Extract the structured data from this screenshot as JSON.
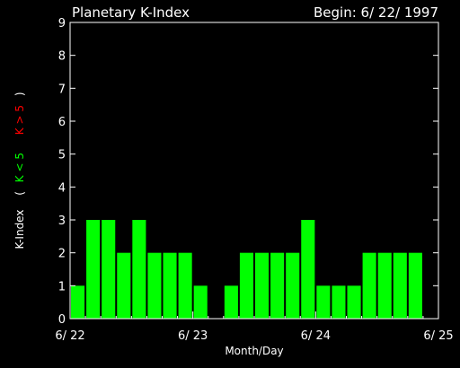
{
  "chart_data": {
    "type": "bar",
    "title": "Planetary K-Index",
    "subtitle": "Begin: 6/ 22/ 1997",
    "xlabel": "Month/Day",
    "ylabel_parts": {
      "main": "K-Index",
      "open_paren": "(",
      "green_part": "K < 5",
      "red_part": "K > 5",
      "close_paren": ")"
    },
    "ylim": [
      0,
      9
    ],
    "yticks": [
      "0",
      "1",
      "2",
      "3",
      "4",
      "5",
      "6",
      "7",
      "8",
      "9"
    ],
    "xlim": [
      0,
      24
    ],
    "xticks": [
      {
        "label": "6/ 22",
        "x": 0
      },
      {
        "label": "6/ 23",
        "x": 8
      },
      {
        "label": "6/ 24",
        "x": 16
      },
      {
        "label": "6/ 25",
        "x": 24
      }
    ],
    "values": [
      1,
      3,
      3,
      2,
      3,
      2,
      2,
      2,
      1,
      0,
      1,
      2,
      2,
      2,
      2,
      3,
      1,
      1,
      1,
      2,
      2,
      2,
      2
    ],
    "legend": "none",
    "grid": false,
    "colors": {
      "background": "#000000",
      "axis": "#ffffff",
      "bar_low": "#00ff00",
      "bar_high": "#ff0000",
      "label_green": "#00ff00",
      "label_red": "#ff0000"
    }
  }
}
